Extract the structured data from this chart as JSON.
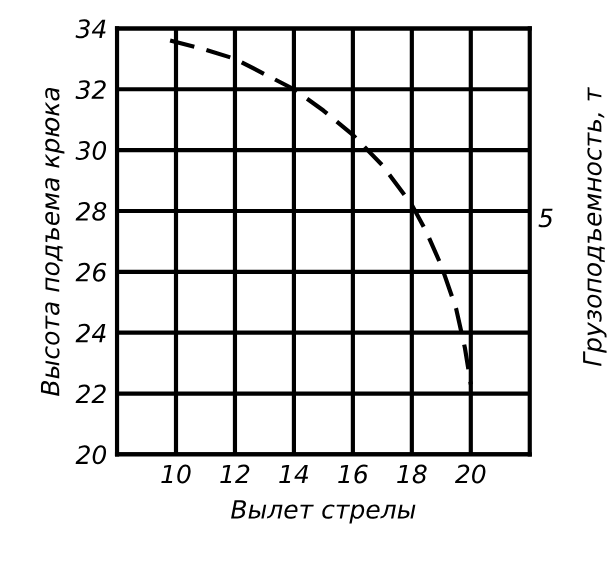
{
  "chart_data": {
    "type": "line",
    "xlabel": "Вылет стрелы",
    "ylabel": "Высота подъема крюка",
    "y2label": "Грузоподъемность, т",
    "x": [
      9.8,
      11,
      12,
      13,
      14,
      15,
      16,
      17,
      18,
      18.5,
      19,
      19.5,
      19.8,
      20
    ],
    "series": [
      {
        "color": "#000000",
        "values": [
          33.6,
          33.3,
          33.0,
          32.5,
          32.0,
          31.3,
          30.5,
          29.5,
          28.2,
          27.3,
          26.2,
          24.8,
          23.5,
          22.3
        ]
      }
    ],
    "xlim": [
      8,
      22
    ],
    "xticks": [
      10,
      12,
      14,
      16,
      18,
      20
    ],
    "ylim": [
      20,
      34
    ],
    "yticks": [
      20,
      22,
      24,
      26,
      28,
      30,
      32,
      34
    ],
    "grid": true,
    "line_style": "dashed",
    "marker": "none",
    "annotations": [
      "5"
    ]
  }
}
